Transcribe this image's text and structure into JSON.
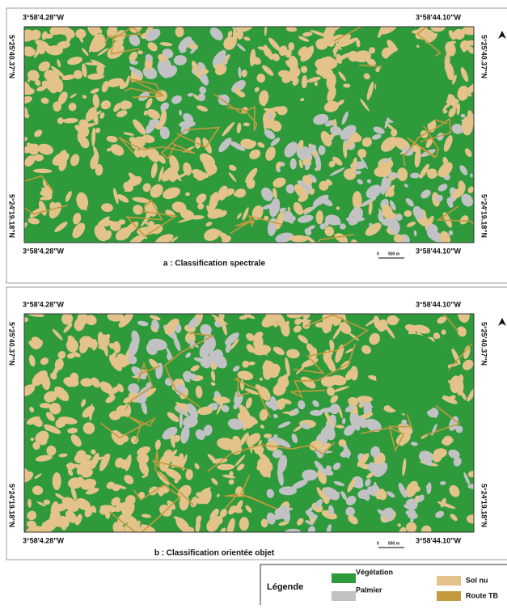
{
  "panels": [
    {
      "top_left": "3°58'4.28\"W",
      "top_right": "3°58'44.10\"W",
      "left_top": "5°25'40.37\"N",
      "left_bottom": "5°24'19.18\"N",
      "right_top": "5°25'40.37\"N",
      "right_bottom": "5°24'19.18\"N",
      "bottom_left": "3°58'4.28\"W",
      "bottom_right": "3°58'44.10\"W",
      "caption": "a : Classification spectrale",
      "scale_zero": "0",
      "scale_label": "500 m"
    },
    {
      "top_left": "3°58'4.28\"W",
      "top_right": "3°58'44.10\"W",
      "left_top": "5°25'40.37\"N",
      "left_bottom": "5°24'19.18\"N",
      "right_top": "5°25'40.37\"N",
      "right_bottom": "5°24'19.18\"N",
      "bottom_left": "3°58'4.28\"W",
      "bottom_right": "3°58'44.10\"W",
      "caption": "b : Classification orientée objet",
      "scale_zero": "0",
      "scale_label": "500 m"
    }
  ],
  "legend": {
    "title": "Légende",
    "items": [
      {
        "label": "Végétation",
        "color": "#2f9a3c"
      },
      {
        "label": "Palmier",
        "color": "#c2c2c4"
      },
      {
        "label": "Sol nu",
        "color": "#e3c38a"
      },
      {
        "label": "Route TB",
        "color": "#c49a3e"
      }
    ]
  }
}
